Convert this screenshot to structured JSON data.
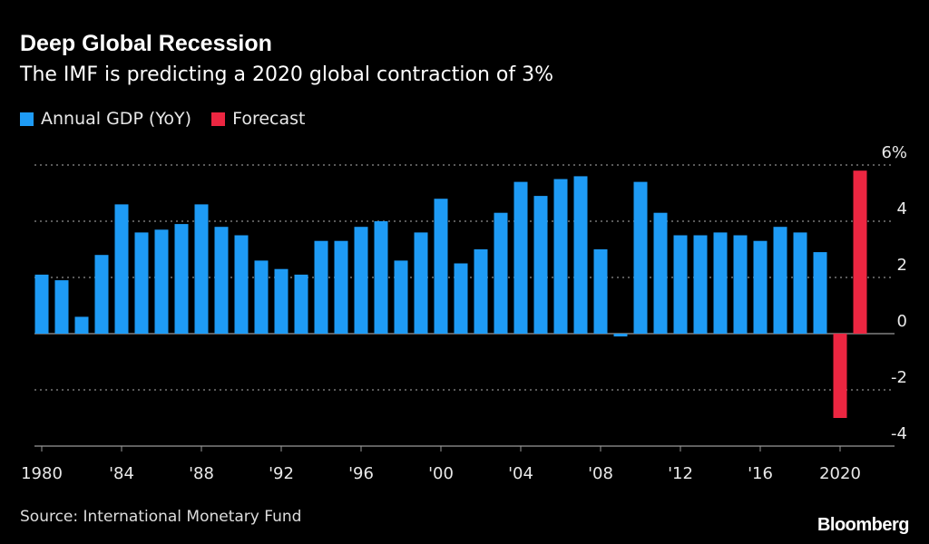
{
  "title": "Deep Global Recession",
  "subtitle": "The IMF is predicting a 2020 global contraction of 3%",
  "source": "Source: International Monetary Fund",
  "logo": "Bloomberg",
  "colors": {
    "gdp": "#1e9bf5",
    "forecast": "#ec2641",
    "grid": "#777777"
  },
  "chart_data": {
    "type": "bar",
    "title": "Deep Global Recession",
    "subtitle": "The IMF is predicting a 2020 global contraction of 3%",
    "ylim": [
      -4,
      6
    ],
    "yticks": [
      6,
      4,
      2,
      0,
      -2,
      -4
    ],
    "ytick_labels": [
      "6%",
      "4",
      "2",
      "0",
      "-2",
      "-4"
    ],
    "xtick_years": [
      1980,
      1984,
      1988,
      1992,
      1996,
      2000,
      2004,
      2008,
      2012,
      2016,
      2020
    ],
    "xtick_labels": [
      "1980",
      "'84",
      "'88",
      "'92",
      "'96",
      "'00",
      "'04",
      "'08",
      "'12",
      "'16",
      "2020"
    ],
    "grid": true,
    "legend": "top-left",
    "series": [
      {
        "name": "Annual GDP (YoY)",
        "color": "#1e9bf5",
        "x": [
          1980,
          1981,
          1982,
          1983,
          1984,
          1985,
          1986,
          1987,
          1988,
          1989,
          1990,
          1991,
          1992,
          1993,
          1994,
          1995,
          1996,
          1997,
          1998,
          1999,
          2000,
          2001,
          2002,
          2003,
          2004,
          2005,
          2006,
          2007,
          2008,
          2009,
          2010,
          2011,
          2012,
          2013,
          2014,
          2015,
          2016,
          2017,
          2018,
          2019
        ],
        "values": [
          2.1,
          1.9,
          0.6,
          2.8,
          4.6,
          3.6,
          3.7,
          3.9,
          4.6,
          3.8,
          3.5,
          2.6,
          2.3,
          2.1,
          3.3,
          3.3,
          3.8,
          4.0,
          2.6,
          3.6,
          4.8,
          2.5,
          3.0,
          4.3,
          5.4,
          4.9,
          5.5,
          5.6,
          3.0,
          -0.1,
          5.4,
          4.3,
          3.5,
          3.5,
          3.6,
          3.5,
          3.3,
          3.8,
          3.6,
          2.9
        ]
      },
      {
        "name": "Forecast",
        "color": "#ec2641",
        "x": [
          2020,
          2021
        ],
        "values": [
          -3.0,
          5.8
        ]
      }
    ]
  }
}
